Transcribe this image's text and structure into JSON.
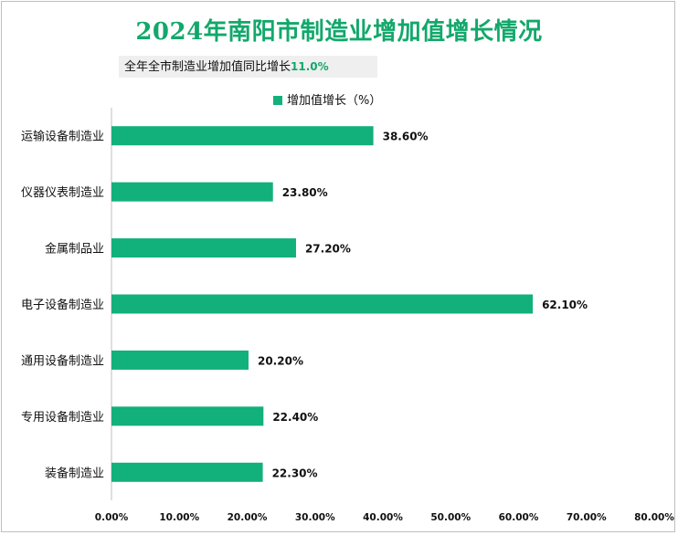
{
  "chart_data": {
    "type": "bar",
    "orientation": "horizontal",
    "title": "2024年南阳市制造业增加值增长情况",
    "subtitle_label": "全年全市制造业增加值同比增长",
    "subtitle_value": "11.0%",
    "legend": {
      "name": "增加值增长（%）",
      "placement": "top-center"
    },
    "categories": [
      "运输设备制造业",
      "仪器仪表制造业",
      "金属制品业",
      "电子设备制造业",
      "通用设备制造业",
      "专用设备制造业",
      "装备制造业"
    ],
    "values": [
      38.6,
      23.8,
      27.2,
      62.1,
      20.2,
      22.4,
      22.3
    ],
    "data_labels": [
      "38.60%",
      "23.80%",
      "27.20%",
      "62.10%",
      "20.20%",
      "22.40%",
      "22.30%"
    ],
    "xlim": [
      0,
      80
    ],
    "xticks": [
      "0.00%",
      "10.00%",
      "20.00%",
      "30.00%",
      "40.00%",
      "50.00%",
      "60.00%",
      "70.00%",
      "80.00%"
    ],
    "grid": false,
    "bar_color": "#12b07b"
  }
}
